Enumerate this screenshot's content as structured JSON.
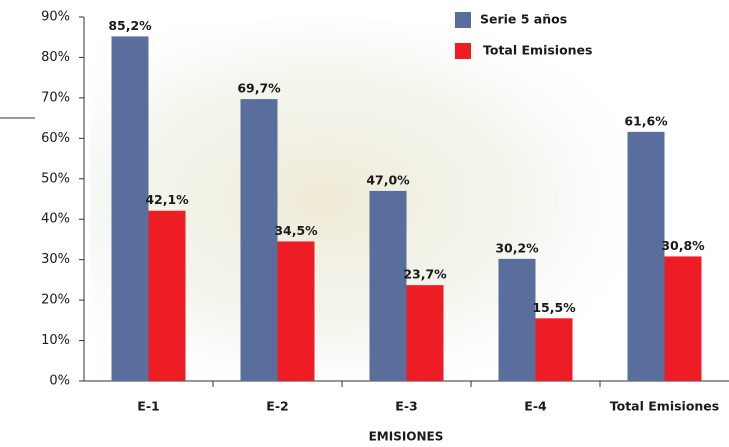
{
  "chart_data": {
    "type": "bar",
    "x_label": "EMISIONES",
    "categories": [
      "E-1",
      "E-2",
      "E-3",
      "E-4",
      "Total Emisiones"
    ],
    "series": [
      {
        "name": "Serie 5 años",
        "color": "#5a6e9e",
        "values": [
          85.2,
          69.7,
          47.0,
          30.2,
          61.6
        ],
        "value_labels": [
          "85,2%",
          "69,7%",
          "47,0%",
          "30,2%",
          "61,6%"
        ]
      },
      {
        "name": "Total Emisiones",
        "color": "#ee1c25",
        "values": [
          42.1,
          34.5,
          23.7,
          15.5,
          30.8
        ],
        "value_labels": [
          "42,1%",
          "34,5%",
          "23,7%",
          "15,5%",
          "30,8%"
        ]
      }
    ],
    "ylim": [
      0,
      90
    ],
    "yticks": [
      {
        "value": 0,
        "label": "0%"
      },
      {
        "value": 10,
        "label": "10%"
      },
      {
        "value": 20,
        "label": "20%"
      },
      {
        "value": 30,
        "label": "30%"
      },
      {
        "value": 40,
        "label": "40%"
      },
      {
        "value": 50,
        "label": "50%"
      },
      {
        "value": 60,
        "label": "60%"
      },
      {
        "value": 70,
        "label": "70%"
      },
      {
        "value": 80,
        "label": "80%"
      },
      {
        "value": 90,
        "label": "90%"
      }
    ],
    "grid": false,
    "legend": "top-right"
  }
}
